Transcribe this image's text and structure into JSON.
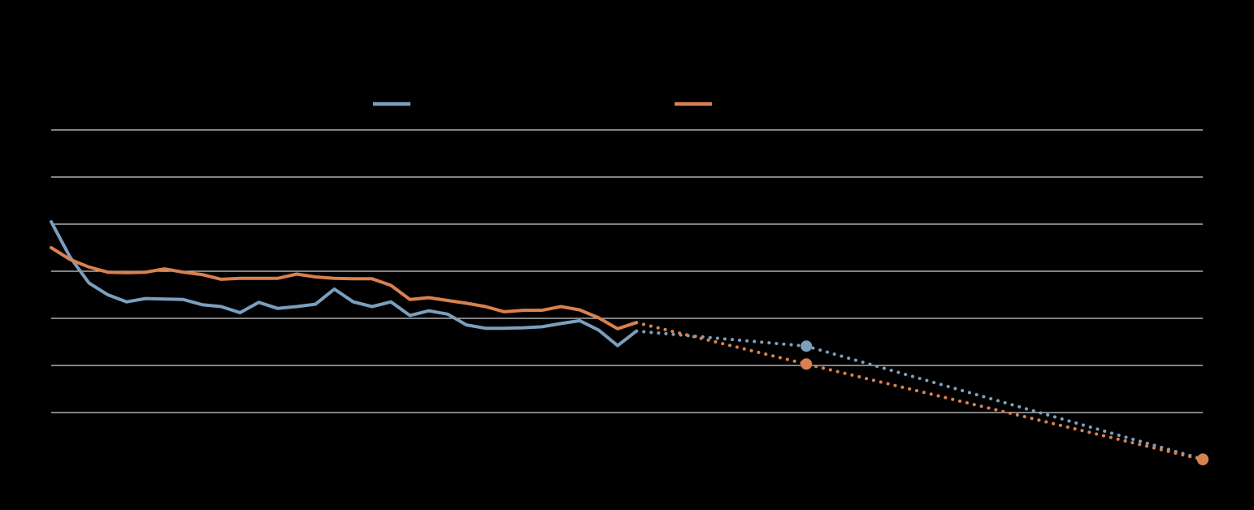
{
  "chart_data": {
    "type": "line",
    "title": "",
    "xlabel": "",
    "ylabel": "",
    "grid": true,
    "legend_position": "top",
    "x": [
      0,
      1,
      2,
      3,
      4,
      5,
      6,
      7,
      8,
      9,
      10,
      11,
      12,
      13,
      14,
      15,
      16,
      17,
      18,
      19,
      20,
      21,
      22,
      23,
      24,
      25,
      26,
      27,
      28,
      29,
      30,
      31
    ],
    "xlim": [
      0,
      61
    ],
    "ylim": [
      0,
      7
    ],
    "yticks": [
      1,
      2,
      3,
      4,
      5,
      6,
      7
    ],
    "series": [
      {
        "color": "#7b9fbd",
        "values": [
          5.05,
          4.3,
          3.75,
          3.5,
          3.35,
          3.42,
          3.41,
          3.4,
          3.29,
          3.25,
          3.12,
          3.34,
          3.21,
          3.25,
          3.3,
          3.62,
          3.35,
          3.25,
          3.35,
          3.06,
          3.16,
          3.09,
          2.86,
          2.79,
          2.79,
          2.8,
          2.82,
          2.89,
          2.95,
          2.75,
          2.42,
          2.73
        ],
        "projection": {
          "x": [
            31,
            40,
            61
          ],
          "values": [
            2.73,
            2.41,
            0.01
          ]
        }
      },
      {
        "color": "#d9814f",
        "values": [
          4.5,
          4.25,
          4.09,
          3.98,
          3.97,
          3.98,
          4.05,
          3.98,
          3.93,
          3.83,
          3.85,
          3.85,
          3.85,
          3.94,
          3.88,
          3.85,
          3.84,
          3.84,
          3.7,
          3.4,
          3.44,
          3.38,
          3.32,
          3.25,
          3.14,
          3.17,
          3.17,
          3.25,
          3.18,
          3.01,
          2.78,
          2.91
        ],
        "projection": {
          "x": [
            31,
            40,
            61
          ],
          "values": [
            2.91,
            2.03,
            0.0
          ]
        }
      }
    ]
  }
}
